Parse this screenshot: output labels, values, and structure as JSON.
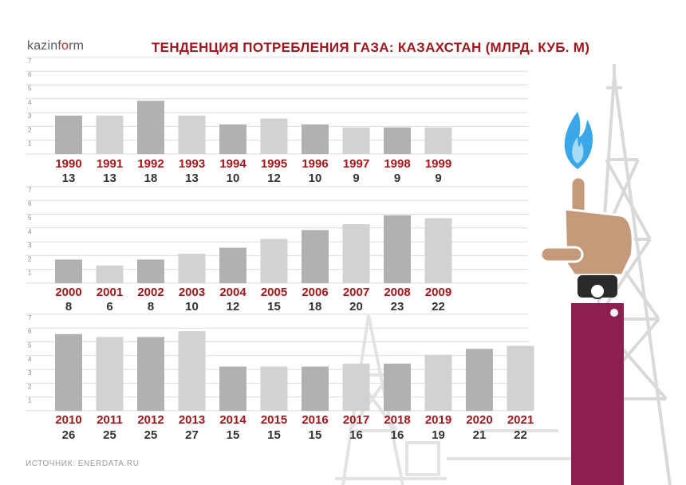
{
  "header": {
    "logo_main": "kazinf",
    "logo_accent": "o",
    "logo_tail": "rm",
    "title": "ТЕНДЕНЦИЯ ПОТРЕБЛЕНИЯ ГАЗА: КАЗАХСТАН (МЛРД. КУБ. М)"
  },
  "footer": {
    "source": "ИСТОЧНИК: ENERDATA.RU"
  },
  "colors": {
    "bar_dark": "#b1b1b1",
    "bar_light": "#d2d2d2",
    "year": "#a4161a",
    "value": "#333333",
    "sleeve": "#8c1f4f",
    "hand": "#c49a7a",
    "flame": "#3aa8e8"
  },
  "chart_data": [
    {
      "type": "bar",
      "y_ticks": [
        "1",
        "2",
        "3",
        "4",
        "5",
        "6",
        "7"
      ],
      "categories": [
        "1990",
        "1991",
        "1992",
        "1993",
        "1994",
        "1995",
        "1996",
        "1997",
        "1998",
        "1999"
      ],
      "values": [
        13,
        13,
        18,
        13,
        10,
        12,
        10,
        9,
        9,
        9
      ],
      "value_labels": [
        "13",
        "13",
        "18",
        "13",
        "10",
        "12",
        "10",
        "9",
        "9",
        "9"
      ]
    },
    {
      "type": "bar",
      "y_ticks": [
        "1",
        "2",
        "3",
        "4",
        "5",
        "6",
        "7"
      ],
      "categories": [
        "2000",
        "2001",
        "2002",
        "2003",
        "2004",
        "2005",
        "2006",
        "2007",
        "2008",
        "2009"
      ],
      "values": [
        8,
        6,
        8,
        10,
        12,
        15,
        18,
        20,
        23,
        22
      ],
      "value_labels": [
        "8",
        "6",
        "8",
        "10",
        "12",
        "15",
        "18",
        "20",
        "23",
        "22"
      ]
    },
    {
      "type": "bar",
      "y_ticks": [
        "1",
        "2",
        "3",
        "4",
        "5",
        "6",
        "7"
      ],
      "categories": [
        "2010",
        "2011",
        "2012",
        "2013",
        "2014",
        "2015",
        "2016",
        "2017",
        "2018",
        "2019",
        "2020",
        "2021"
      ],
      "values": [
        26,
        25,
        25,
        27,
        15,
        15,
        15,
        16,
        16,
        19,
        21,
        22
      ],
      "value_labels": [
        "26",
        "25",
        "25",
        "27",
        "15",
        "15",
        "15",
        "16",
        "16",
        "19",
        "21",
        "22"
      ]
    }
  ]
}
